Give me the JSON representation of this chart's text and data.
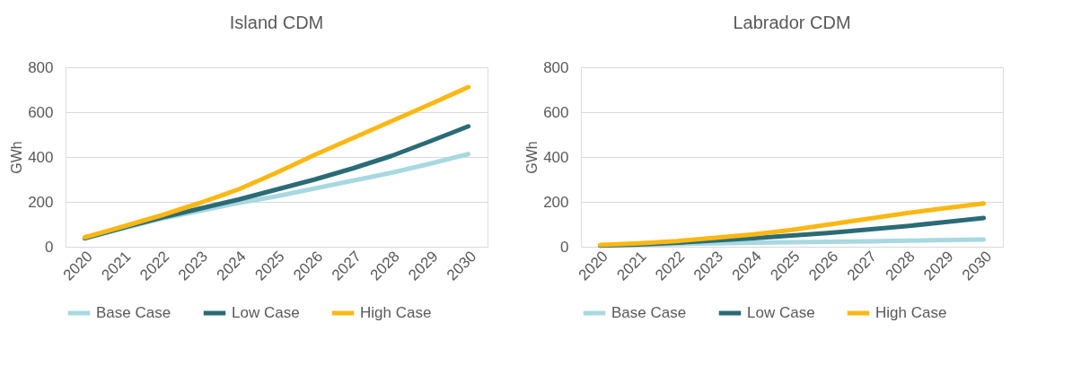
{
  "chart_data": [
    {
      "type": "line",
      "title": "Island CDM",
      "ylabel": "GWh",
      "categories": [
        "2020",
        "2021",
        "2022",
        "2023",
        "2024",
        "2025",
        "2026",
        "2027",
        "2028",
        "2029",
        "2030"
      ],
      "ylim": [
        0,
        800
      ],
      "yticks": [
        0,
        200,
        400,
        600,
        800
      ],
      "grid": "y",
      "legend": "bottom",
      "line_style": "solid",
      "series": [
        {
          "name": "Base Case",
          "color": "#a8d8e0",
          "values": [
            38,
            82,
            125,
            160,
            195,
            225,
            260,
            295,
            330,
            370,
            413
          ]
        },
        {
          "name": "Low Case",
          "color": "#2a6b76",
          "values": [
            38,
            85,
            130,
            170,
            210,
            255,
            300,
            350,
            405,
            470,
            537
          ]
        },
        {
          "name": "High Case",
          "color": "#fbb813",
          "values": [
            42,
            90,
            140,
            195,
            255,
            330,
            410,
            485,
            560,
            635,
            712
          ]
        }
      ]
    },
    {
      "type": "line",
      "title": "Labrador CDM",
      "ylabel": "GWh",
      "categories": [
        "2020",
        "2021",
        "2022",
        "2023",
        "2024",
        "2025",
        "2026",
        "2027",
        "2028",
        "2029",
        "2030"
      ],
      "ylim": [
        0,
        800
      ],
      "yticks": [
        0,
        200,
        400,
        600,
        800
      ],
      "grid": "y",
      "legend": "bottom",
      "line_style": "solid",
      "series": [
        {
          "name": "Base Case",
          "color": "#a8d8e0",
          "values": [
            5,
            8,
            12,
            15,
            18,
            20,
            22,
            24,
            27,
            30,
            32
          ]
        },
        {
          "name": "Low Case",
          "color": "#2a6b76",
          "values": [
            5,
            10,
            18,
            28,
            38,
            50,
            62,
            77,
            92,
            110,
            128
          ]
        },
        {
          "name": "High Case",
          "color": "#fbb813",
          "values": [
            8,
            15,
            25,
            40,
            55,
            75,
            100,
            125,
            150,
            172,
            193
          ]
        }
      ]
    }
  ]
}
